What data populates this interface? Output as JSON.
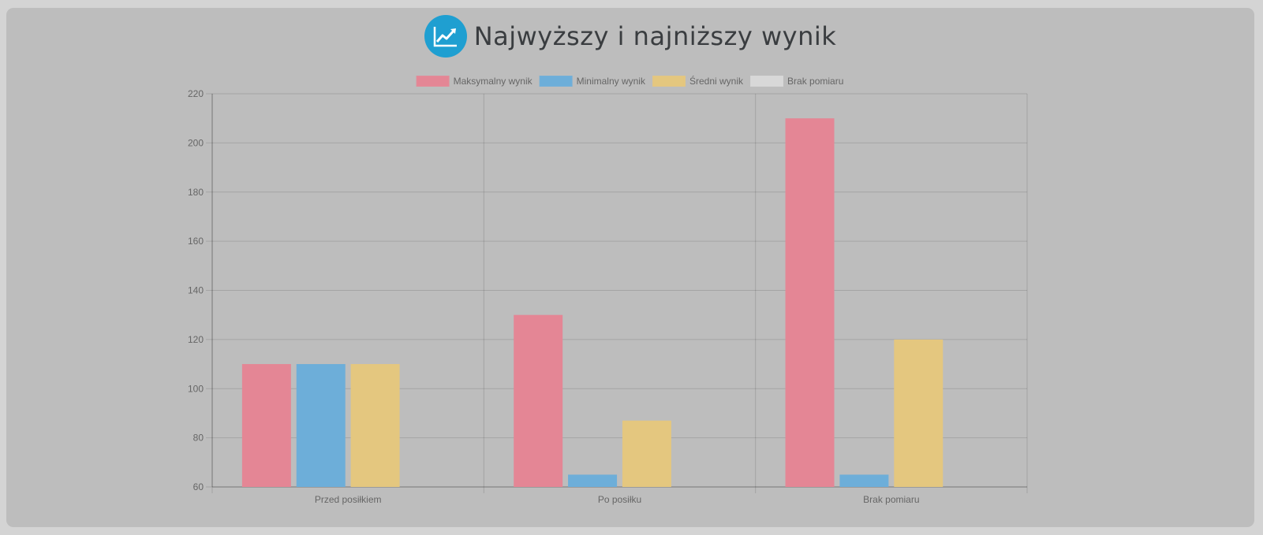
{
  "header": {
    "title": "Najwyższy i najniższy wynik",
    "icon": "trend-chart-icon",
    "icon_color": "#1f9fd1"
  },
  "chart_data": {
    "type": "bar",
    "categories": [
      "Przed posiłkiem",
      "Po posiłku",
      "Brak pomiaru"
    ],
    "series": [
      {
        "name": "Maksymalny wynik",
        "values": [
          110,
          130,
          210
        ],
        "color": "#e48695"
      },
      {
        "name": "Minimalny wynik",
        "values": [
          110,
          65,
          65
        ],
        "color": "#6daed9"
      },
      {
        "name": "Średni wynik",
        "values": [
          110,
          87,
          120
        ],
        "color": "#e4c77f"
      },
      {
        "name": "Brak pomiaru",
        "values": [
          null,
          null,
          null
        ],
        "color": "#d8d8d8"
      }
    ],
    "title": "",
    "xlabel": "",
    "ylabel": "",
    "ylim": [
      60,
      220
    ],
    "yticks": [
      60,
      80,
      100,
      120,
      140,
      160,
      180,
      200,
      220
    ],
    "grid": true,
    "legend_position": "top"
  }
}
